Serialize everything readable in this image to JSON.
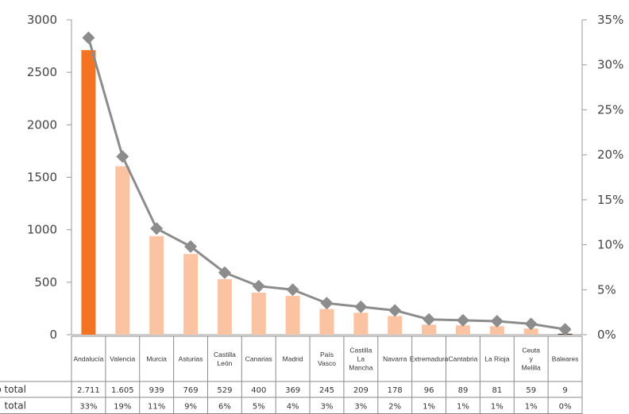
{
  "chart_data": {
    "type": "bar",
    "categories": [
      "Andalucía",
      "Valencia",
      "Murcia",
      "Asturias",
      "Castilla\nLeón",
      "Canarias",
      "Madrid",
      "País\nVasco",
      "Castilla\nLa\nMancha",
      "Navarra",
      "Extremadura",
      "Cantabria",
      "La Rioja",
      "Ceuta\ny\nMelilla",
      "Baleares"
    ],
    "series": [
      {
        "values": [
          2711,
          1605,
          939,
          769,
          529,
          400,
          369,
          245,
          209,
          178,
          96,
          89,
          81,
          59,
          9
        ],
        "axis": "left",
        "type": "bar"
      },
      {
        "values": [
          33,
          19,
          11,
          9,
          6,
          5,
          4,
          3,
          3,
          2,
          1,
          1,
          1,
          1,
          0
        ],
        "axis": "right",
        "type": "line",
        "unit": "%"
      }
    ],
    "ylim_left": [
      0,
      3000
    ],
    "yticks_left": [
      "0",
      "500",
      "1000",
      "1500",
      "2000",
      "2500",
      "3000"
    ],
    "ylim_right": [
      0,
      35
    ],
    "yticks_right": [
      "0%",
      "5%",
      "10%",
      "15%",
      "20%",
      "25%",
      "30%",
      "35%"
    ],
    "table": {
      "rows": [
        {
          "label": "o total",
          "cells": [
            "2.711",
            "1.605",
            "939",
            "769",
            "529",
            "400",
            "369",
            "245",
            "209",
            "178",
            "96",
            "89",
            "81",
            "59",
            "9"
          ]
        },
        {
          "label": "total",
          "cells": [
            "33%",
            "19%",
            "11%",
            "9%",
            "6%",
            "5%",
            "4%",
            "3%",
            "3%",
            "2%",
            "1%",
            "1%",
            "1%",
            "1%",
            "0%"
          ]
        }
      ]
    },
    "grid": false,
    "colors": {
      "first_bar": "#f47321",
      "other_bars": "#fbc3a1",
      "last_bar": "#4a3a30",
      "line": "#8c8c8c",
      "marker": "#8c8c8c",
      "axis": "#999999",
      "table_border": "#8a8a8a"
    }
  }
}
